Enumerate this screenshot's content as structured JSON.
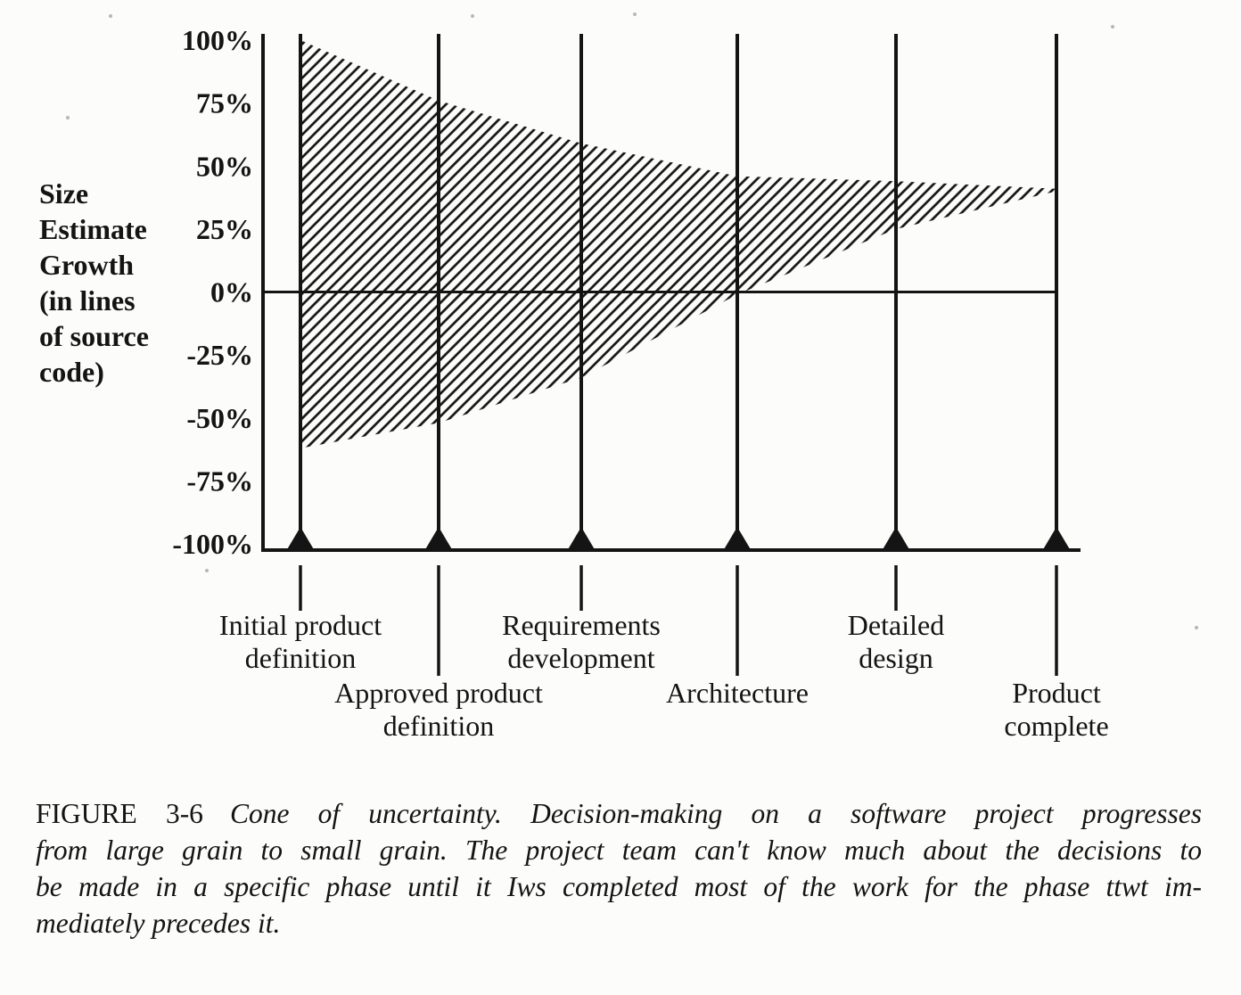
{
  "figure": {
    "axis_title_lines": [
      "Size",
      "Estimate",
      "Growth",
      "(in lines",
      "of source",
      "code)"
    ],
    "caption": {
      "label": "FIGURE 3-6",
      "line1": "Cone of uncertainty. Decision-making on a software project progresses",
      "line2": "from large grain to small grain. The project team can't know much about the decisions to",
      "line3": "be made in a specific phase until it Iws completed most of the work for the phase ttwt im-",
      "line4": "mediately precedes it."
    }
  },
  "chart_data": {
    "type": "area",
    "title": "Cone of uncertainty",
    "ylabel": "Size Estimate Growth (in lines of source code)",
    "xlabel": "",
    "ylim": [
      -100,
      100
    ],
    "grid": false,
    "legend": "none",
    "fill": "diagonal-hatch",
    "zero_line": true,
    "ink_color": "#141414",
    "y_ticks": [
      {
        "label": "100%",
        "value": 100
      },
      {
        "label": "75%",
        "value": 75
      },
      {
        "label": "50%",
        "value": 50
      },
      {
        "label": "25%",
        "value": 25
      },
      {
        "label": "0%",
        "value": 0
      },
      {
        "label": "-25%",
        "value": -25
      },
      {
        "label": "-50%",
        "value": -50
      },
      {
        "label": "-75%",
        "value": -75
      },
      {
        "label": "-100%",
        "value": -100
      }
    ],
    "milestones": [
      {
        "label": "Initial product definition",
        "label_lines": [
          "Initial product",
          "definition"
        ],
        "row": 0
      },
      {
        "label": "Approved product definition",
        "label_lines": [
          "Approved product",
          "definition"
        ],
        "row": 1
      },
      {
        "label": "Requirements development",
        "label_lines": [
          "Requirements",
          "development"
        ],
        "row": 0
      },
      {
        "label": "Architecture",
        "label_lines": [
          "Architecture"
        ],
        "row": 1
      },
      {
        "label": "Detailed design",
        "label_lines": [
          "Detailed",
          "design"
        ],
        "row": 0
      },
      {
        "label": "Product complete",
        "label_lines": [
          "Product",
          "complete"
        ],
        "row": 1
      }
    ],
    "series": [
      {
        "name": "estimate-growth-upper-bound",
        "values": [
          100,
          76,
          59,
          46,
          44,
          41
        ]
      },
      {
        "name": "estimate-growth-lower-bound",
        "values": [
          -62,
          -52,
          -34,
          -1,
          25,
          40
        ]
      }
    ]
  }
}
